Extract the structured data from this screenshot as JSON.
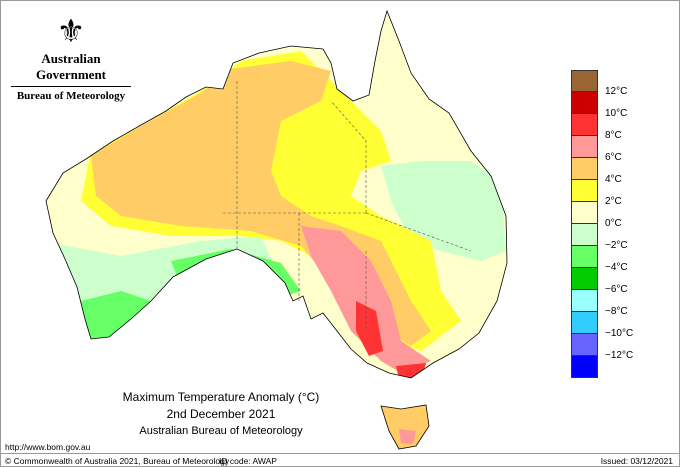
{
  "header": {
    "government": "Australian Government",
    "agency": "Bureau of Meteorology"
  },
  "title": {
    "line1": "Maximum Temperature Anomaly (°C)",
    "line2": "2nd December 2021",
    "line3": "Australian Bureau of Meteorology"
  },
  "legend": {
    "colors": [
      "#996633",
      "#cc0000",
      "#ff3333",
      "#ff9999",
      "#ffcc66",
      "#ffff33",
      "#ffffcc",
      "#ccffcc",
      "#66ff66",
      "#00cc00",
      "#99ffff",
      "#33ccff",
      "#6666ff",
      "#0000ff"
    ],
    "labels": [
      "12°C",
      "10°C",
      "8°C",
      "6°C",
      "4°C",
      "2°C",
      "0°C",
      "−2°C",
      "−4°C",
      "−6°C",
      "−8°C",
      "−10°C",
      "−12°C"
    ]
  },
  "footer": {
    "url": "http://www.bom.gov.au",
    "copyright": "© Commonwealth of Australia 2021, Bureau of Meteorology",
    "id_code": "ID code: AWAP",
    "issued": "Issued: 03/12/2021"
  }
}
